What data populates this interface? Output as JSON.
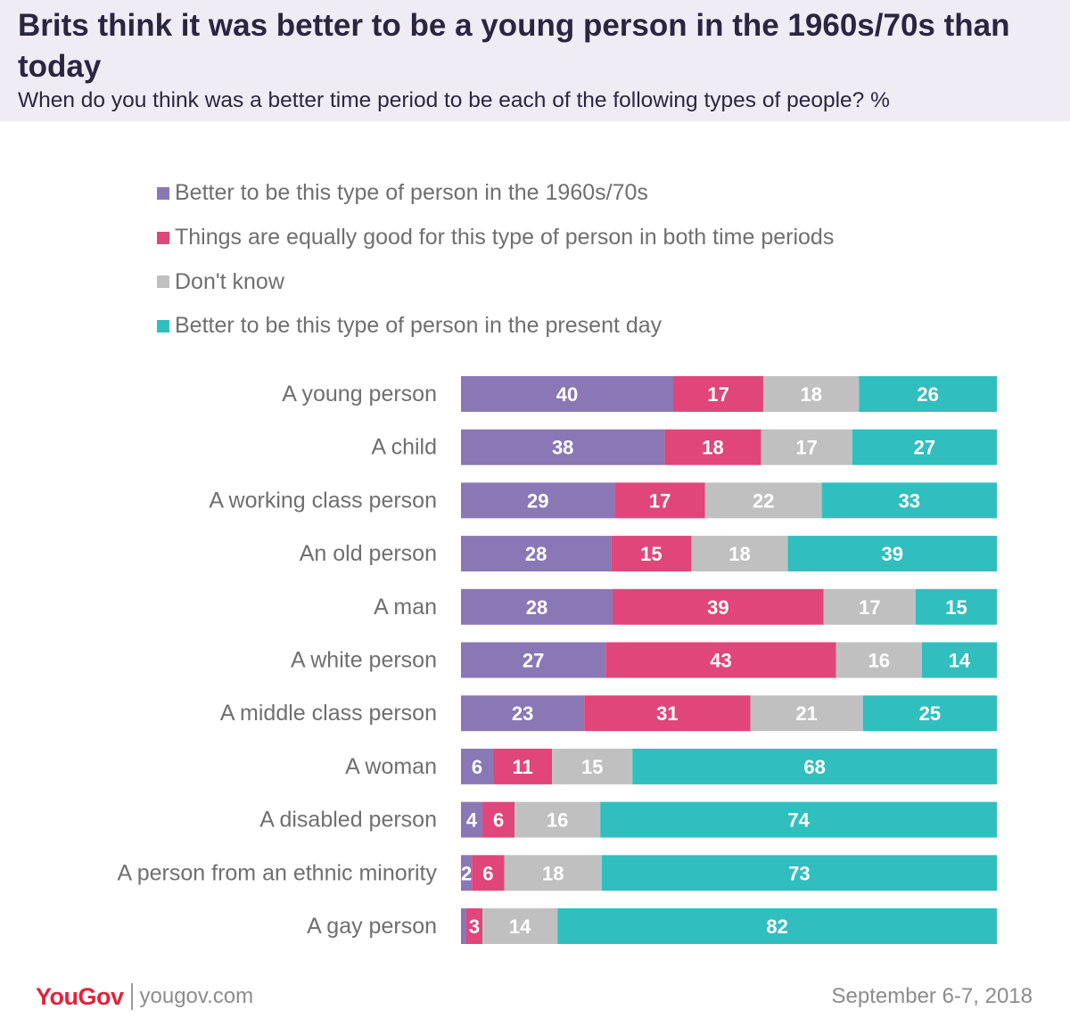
{
  "chart_data": {
    "type": "stacked-bar-horizontal",
    "title": "Brits think it was better to be a young person in the 1960s/70s than today",
    "subtitle": "When do you think was a better time period to be each of the following types of people? %",
    "categories": [
      "A young person",
      "A child",
      "A working class person",
      "An old person",
      "A man",
      "A white person",
      "A middle class person",
      "A woman",
      "A disabled person",
      "A person from an ethnic minority",
      "A gay person"
    ],
    "series": [
      {
        "name": "Better to be this type of person in the 1960s/70s",
        "color": "#8a78b6",
        "values": [
          40,
          38,
          29,
          28,
          28,
          27,
          23,
          6,
          4,
          2,
          1
        ]
      },
      {
        "name": "Things are equally good for this type of person in both time periods",
        "color": "#e0467a",
        "values": [
          17,
          18,
          17,
          15,
          39,
          43,
          31,
          11,
          6,
          6,
          3
        ]
      },
      {
        "name": "Don't know",
        "color": "#c0c0c0",
        "values": [
          18,
          17,
          22,
          18,
          17,
          16,
          21,
          15,
          16,
          18,
          14
        ]
      },
      {
        "name": "Better to be this type of person in the present day",
        "color": "#31bebf",
        "values": [
          26,
          27,
          33,
          39,
          15,
          14,
          25,
          68,
          74,
          73,
          82
        ]
      }
    ],
    "value_labels": [
      [
        "40",
        "38",
        "29",
        "28",
        "28",
        "27",
        "23",
        "6",
        "4",
        "2",
        ""
      ],
      [
        "17",
        "18",
        "17",
        "15",
        "39",
        "43",
        "31",
        "11",
        "6",
        "6",
        "3"
      ],
      [
        "18",
        "17",
        "22",
        "18",
        "17",
        "16",
        "21",
        "15",
        "16",
        "18",
        "14"
      ],
      [
        "26",
        "27",
        "33",
        "39",
        "15",
        "14",
        "25",
        "68",
        "74",
        "73",
        "82"
      ]
    ],
    "legend_position": "top",
    "grid": false
  },
  "footer": {
    "logo_you": "You",
    "logo_gov": "Gov",
    "site": "yougov.com",
    "date": "September 6-7, 2018"
  }
}
